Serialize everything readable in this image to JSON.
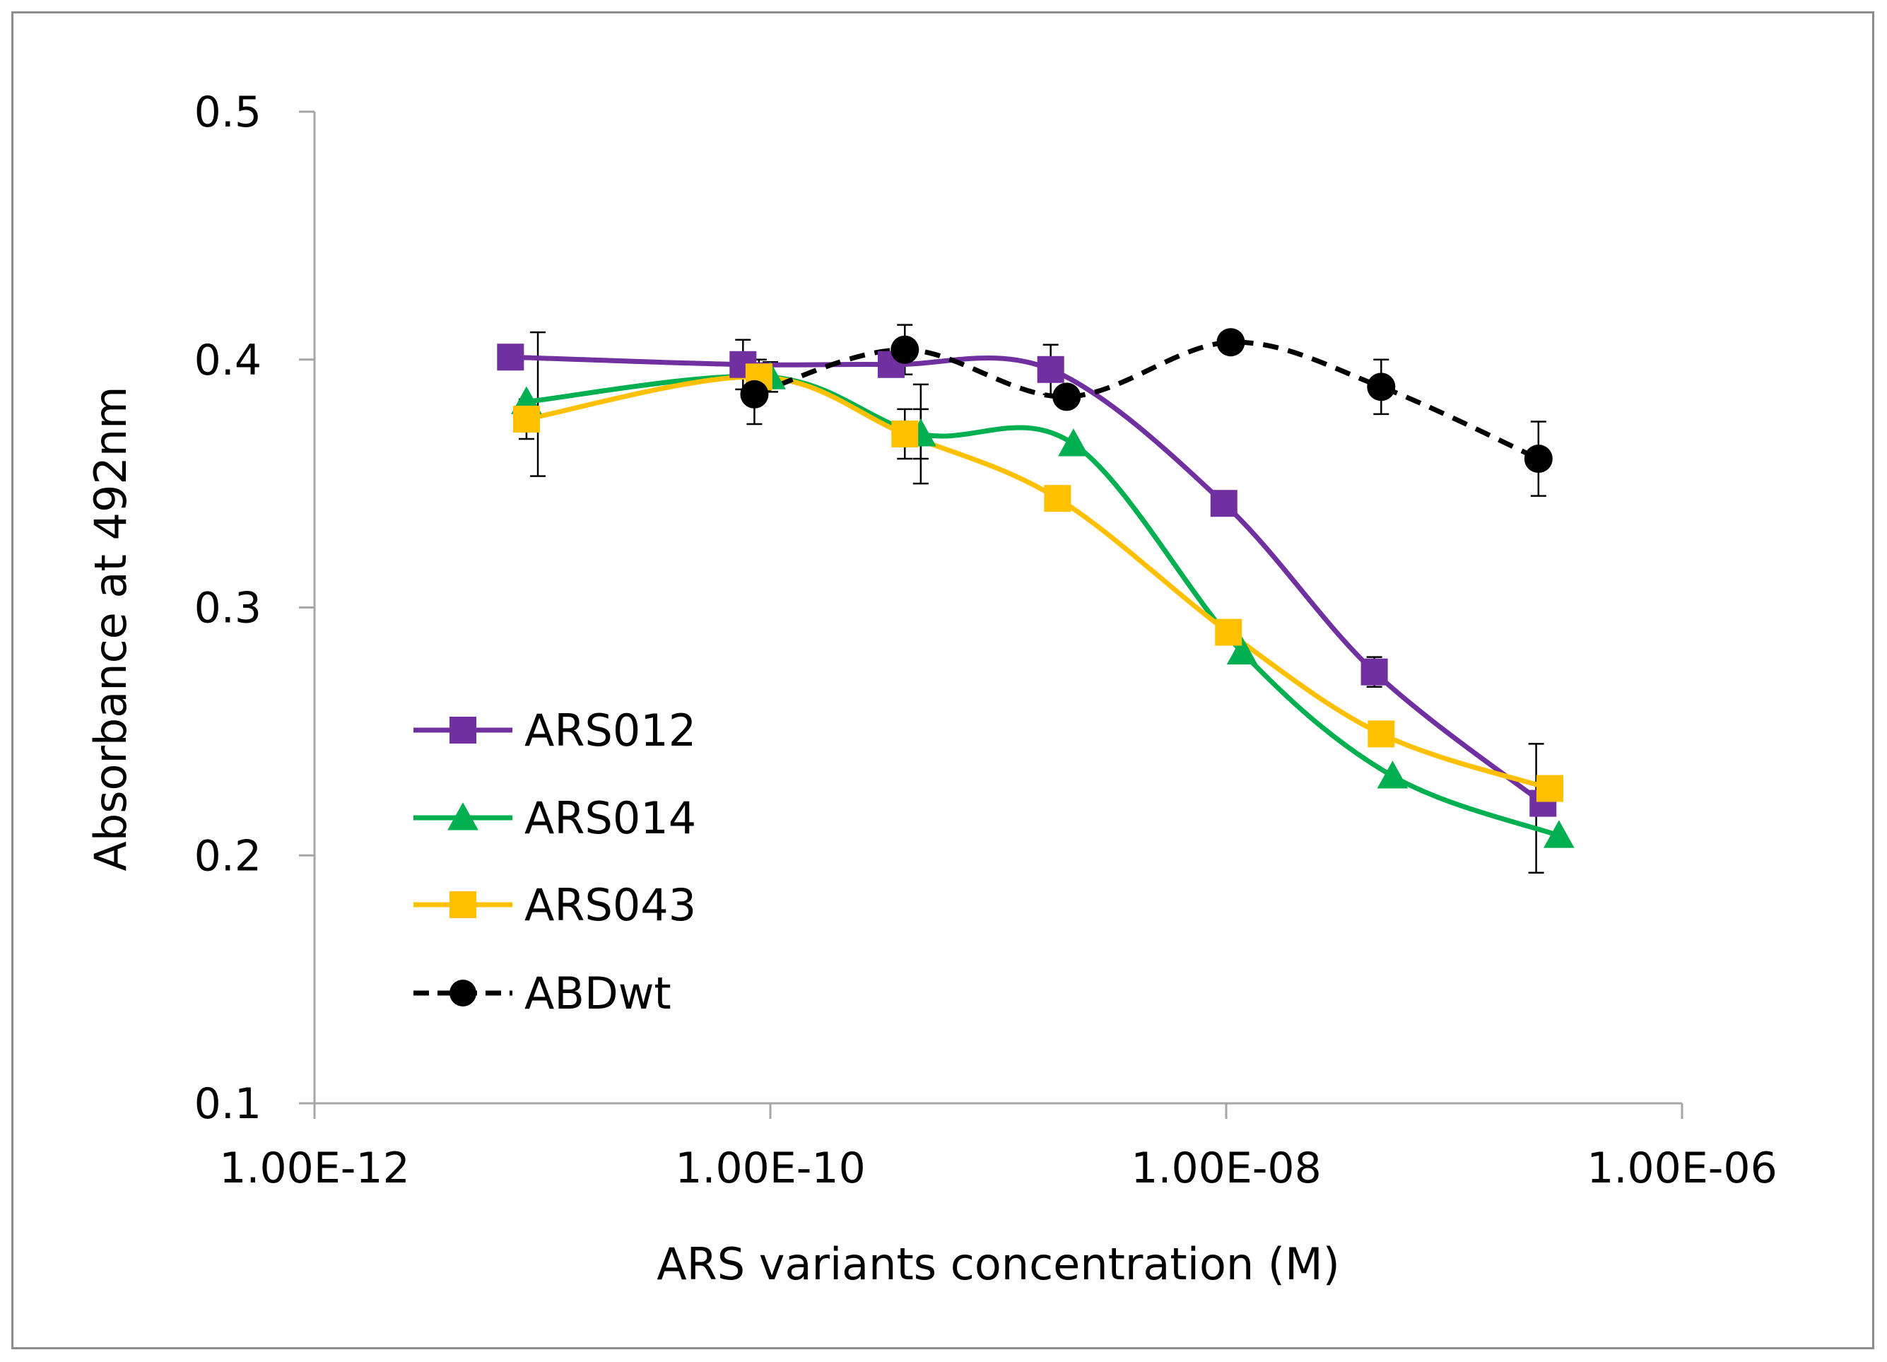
{
  "chart_data": {
    "type": "line",
    "title": "",
    "xlabel": "ARS variants concentration (M)",
    "ylabel": "Absorbance at 492nm",
    "xscale": "log10",
    "xlim_log10": [
      -12,
      -6
    ],
    "ylim": [
      0.1,
      0.5
    ],
    "x_ticks": [
      {
        "log10": -12,
        "label": "1.00E-12"
      },
      {
        "log10": -10,
        "label": "1.00E-10"
      },
      {
        "log10": -8,
        "label": "1.00E-08"
      },
      {
        "log10": -6,
        "label": "1.00E-06"
      }
    ],
    "y_ticks": [
      {
        "value": 0.1,
        "label": "0.1"
      },
      {
        "value": 0.2,
        "label": "0.2"
      },
      {
        "value": 0.3,
        "label": "0.3"
      },
      {
        "value": 0.4,
        "label": "0.4"
      },
      {
        "value": 0.5,
        "label": "0.5"
      }
    ],
    "grid": false,
    "legend_position": "left-center",
    "series": [
      {
        "name": "ARS012",
        "color": "#7030a0",
        "marker": "square",
        "dash": "solid",
        "log10_x": [
          -11.14,
          -10.12,
          -9.47,
          -8.77,
          -8.01,
          -7.35,
          -6.61
        ],
        "y": [
          0.401,
          0.398,
          0.398,
          0.396,
          0.342,
          0.274,
          0.221
        ],
        "err": [
          0.0,
          0.01,
          0.005,
          0.01,
          0.0,
          0.006,
          0.0
        ]
      },
      {
        "name": "ARS014",
        "color": "#00b050",
        "marker": "triangle",
        "dash": "solid",
        "log10_x": [
          -11.07,
          -10.0,
          -9.34,
          -8.67,
          -7.93,
          -7.27,
          -6.54
        ],
        "y": [
          0.383,
          0.393,
          0.37,
          0.366,
          0.282,
          0.232,
          0.208
        ],
        "err": [
          0.0,
          0.006,
          0.01,
          0.0,
          0.0,
          0.0,
          0.0
        ]
      },
      {
        "name": "ARS043",
        "color": "#ffc000",
        "marker": "square",
        "dash": "solid",
        "log10_x": [
          -11.07,
          -10.05,
          -9.41,
          -8.74,
          -7.99,
          -7.32,
          -6.58
        ],
        "y": [
          0.376,
          0.393,
          0.37,
          0.344,
          0.29,
          0.249,
          0.227
        ],
        "err": [
          0.008,
          0.007,
          0.01,
          0.0,
          0.0,
          0.0,
          0.0
        ]
      },
      {
        "name": "ABDwt",
        "color": "#000000",
        "marker": "circle",
        "dash": "dashed",
        "log10_x": [
          -10.07,
          -9.41,
          -8.7,
          -7.98,
          -7.32,
          -6.63
        ],
        "y": [
          0.386,
          0.404,
          0.385,
          0.407,
          0.389,
          0.36
        ],
        "err": [
          0.012,
          0.01,
          0.0,
          0.0,
          0.011,
          0.015
        ]
      }
    ],
    "extra_error_bars": [
      {
        "log10_x": -11.02,
        "y": 0.382,
        "err": 0.029
      },
      {
        "log10_x": -9.34,
        "y": 0.37,
        "err": 0.02
      },
      {
        "log10_x": -6.64,
        "y": 0.219,
        "err": 0.026
      }
    ]
  }
}
